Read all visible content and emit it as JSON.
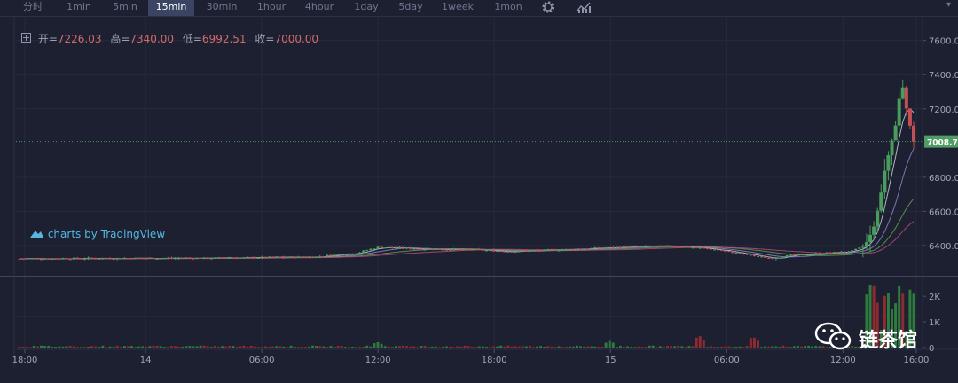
{
  "toolbar": {
    "tabs": [
      {
        "label": "分时"
      },
      {
        "label": "1min"
      },
      {
        "label": "5min"
      },
      {
        "label": "15min"
      },
      {
        "label": "30min"
      },
      {
        "label": "1hour"
      },
      {
        "label": "4hour"
      },
      {
        "label": "1day"
      },
      {
        "label": "5day"
      },
      {
        "label": "1week"
      },
      {
        "label": "1mon"
      }
    ],
    "active_tab": "15min",
    "icons": [
      "gear-icon",
      "indicator-icon",
      "expand-icon"
    ]
  },
  "ohlc": {
    "open_label": "开=",
    "open": "7226.03",
    "high_label": "高=",
    "high": "7340.00",
    "low_label": "低=",
    "low": "6992.51",
    "close_label": "收=",
    "close": "7000.00"
  },
  "watermark": "charts by TradingView",
  "wechat": {
    "label": "链茶馆"
  },
  "colors": {
    "background": "#1c2030",
    "up": "#4a9c5c",
    "down": "#c25055",
    "price_line": "#4f8d62",
    "watermark": "#55b7e0"
  },
  "chart_data": [
    {
      "type": "candlestick",
      "y_axis_labels": [
        "7600.00",
        "7400.00",
        "7200.00",
        "6800.00",
        "6600.00",
        "6400.00"
      ],
      "ylim": [
        6280,
        7640
      ],
      "x_axis_labels": [
        "18:00",
        "14",
        "06:00",
        "12:00",
        "18:00",
        "15",
        "06:00",
        "12:00",
        "16:00"
      ],
      "current_price_label": "7008.7",
      "current_price": 7008.7,
      "price_path": [
        {
          "t": 0.0,
          "p": 6322
        },
        {
          "t": 0.1,
          "p": 6325
        },
        {
          "t": 0.2,
          "p": 6325
        },
        {
          "t": 0.28,
          "p": 6330
        },
        {
          "t": 0.33,
          "p": 6333
        },
        {
          "t": 0.38,
          "p": 6360
        },
        {
          "t": 0.4,
          "p": 6390
        },
        {
          "t": 0.45,
          "p": 6380
        },
        {
          "t": 0.5,
          "p": 6375
        },
        {
          "t": 0.55,
          "p": 6365
        },
        {
          "t": 0.6,
          "p": 6375
        },
        {
          "t": 0.65,
          "p": 6385
        },
        {
          "t": 0.7,
          "p": 6395
        },
        {
          "t": 0.74,
          "p": 6395
        },
        {
          "t": 0.78,
          "p": 6375
        },
        {
          "t": 0.82,
          "p": 6340
        },
        {
          "t": 0.84,
          "p": 6325
        },
        {
          "t": 0.86,
          "p": 6340
        },
        {
          "t": 0.9,
          "p": 6355
        },
        {
          "t": 0.93,
          "p": 6365
        },
        {
          "t": 0.945,
          "p": 6395
        },
        {
          "t": 0.955,
          "p": 6500
        },
        {
          "t": 0.962,
          "p": 6660
        },
        {
          "t": 0.968,
          "p": 6850
        },
        {
          "t": 0.975,
          "p": 7000
        },
        {
          "t": 0.982,
          "p": 7150
        },
        {
          "t": 0.986,
          "p": 7390
        },
        {
          "t": 0.99,
          "p": 7250
        },
        {
          "t": 0.994,
          "p": 7150
        },
        {
          "t": 1.0,
          "p": 7000
        }
      ]
    },
    {
      "type": "bar",
      "name": "volume",
      "y_axis_labels": [
        "2K",
        "1K",
        "0"
      ],
      "ylim": [
        0,
        2700
      ],
      "spikes": [
        {
          "t": 0.4,
          "v": 220,
          "dir": "up"
        },
        {
          "t": 0.66,
          "v": 260,
          "dir": "up"
        },
        {
          "t": 0.76,
          "v": 480,
          "dir": "down"
        },
        {
          "t": 0.82,
          "v": 440,
          "dir": "down"
        },
        {
          "t": 0.92,
          "v": 300,
          "dir": "up"
        },
        {
          "t": 0.95,
          "v": 1500,
          "dir": "up"
        },
        {
          "t": 0.97,
          "v": 2400,
          "dir": "up"
        },
        {
          "t": 0.985,
          "v": 2600,
          "dir": "up"
        },
        {
          "t": 1.0,
          "v": 2100,
          "dir": "down"
        }
      ]
    }
  ]
}
